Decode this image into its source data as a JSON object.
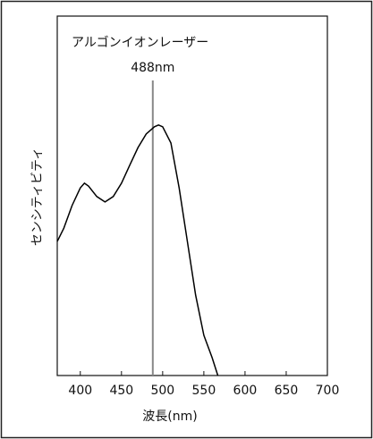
{
  "chart_data": {
    "type": "line",
    "xlabel": "波長(nm)",
    "ylabel": "センシティビティ",
    "x": [
      372,
      380,
      390,
      400,
      405,
      410,
      420,
      430,
      440,
      450,
      460,
      470,
      480,
      490,
      495,
      500,
      510,
      520,
      530,
      540,
      550,
      560,
      567
    ],
    "series": [
      {
        "color": "#000000",
        "values": [
          0.373,
          0.41,
          0.473,
          0.522,
          0.535,
          0.527,
          0.498,
          0.483,
          0.498,
          0.535,
          0.585,
          0.634,
          0.672,
          0.692,
          0.697,
          0.692,
          0.647,
          0.522,
          0.373,
          0.224,
          0.112,
          0.05,
          0
        ]
      }
    ],
    "xlim": [
      372,
      700
    ],
    "xticks": [
      400,
      450,
      500,
      550,
      600,
      650,
      700
    ],
    "ylim": [
      0,
      1
    ],
    "laser": {
      "name": "アルゴンイオンレーザー",
      "x": 488,
      "label": "488nm",
      "color": "#888888"
    }
  }
}
